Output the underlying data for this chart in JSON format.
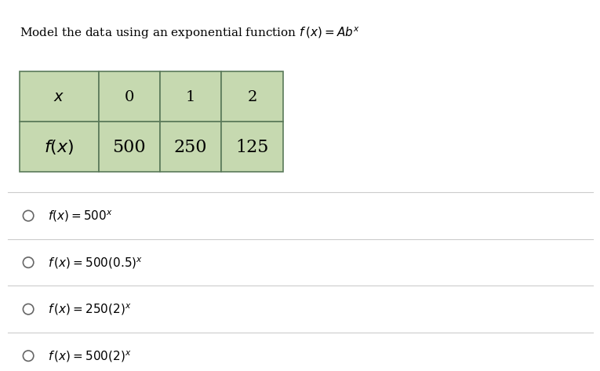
{
  "title": "Model the data using an exponential function $f\\,(x) = Ab^x$",
  "title_fontsize": 11,
  "table_header_row": [
    "$x$",
    "0",
    "1",
    "2"
  ],
  "table_data_row": [
    "$f(x)$",
    "500",
    "250",
    "125"
  ],
  "header_bg": "#c6d9b0",
  "border_color": "#5a7a5a",
  "options": [
    "$f(x) = 500^x$",
    "$f\\,(x) = 500(0.5)^x$",
    "$f\\,(x) = 250(2)^x$",
    "$f\\,(x) = 500(2)^x$"
  ],
  "option_fontsize": 11,
  "bg_color": "#ffffff",
  "text_color": "#000000",
  "divider_color": "#cccccc"
}
